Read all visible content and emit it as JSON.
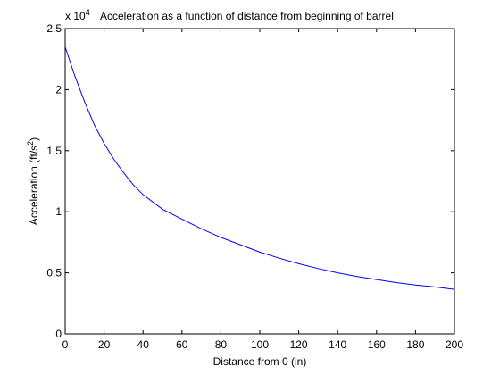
{
  "chart_data": {
    "type": "line",
    "title": "Acceleration as a function of distance from beginning of barrel",
    "xlabel": "Distance from 0 (in)",
    "ylabel": {
      "prefix": "Acceleration (ft/s",
      "superscript": "2",
      "suffix": ")"
    },
    "exponent_label": {
      "base": "x 10",
      "power": "4"
    },
    "xlim": [
      0,
      200
    ],
    "ylim": [
      0,
      2.5
    ],
    "x_ticks": [
      "0",
      "20",
      "40",
      "60",
      "80",
      "100",
      "120",
      "140",
      "160",
      "180",
      "200"
    ],
    "y_ticks": [
      "0",
      "0.5",
      "1",
      "1.5",
      "2",
      "2.5"
    ],
    "grid": false,
    "series": [
      {
        "color": "#0000ff",
        "x": [
          0,
          5,
          10,
          15,
          20,
          25,
          30,
          35,
          40,
          50,
          60,
          70,
          80,
          90,
          100,
          110,
          120,
          130,
          140,
          150,
          160,
          170,
          180,
          190,
          200
        ],
        "y": [
          2.35,
          2.11,
          1.9,
          1.71,
          1.56,
          1.43,
          1.32,
          1.22,
          1.14,
          1.02,
          0.94,
          0.86,
          0.79,
          0.73,
          0.67,
          0.62,
          0.575,
          0.535,
          0.5,
          0.47,
          0.445,
          0.42,
          0.4,
          0.385,
          0.365
        ]
      }
    ]
  }
}
